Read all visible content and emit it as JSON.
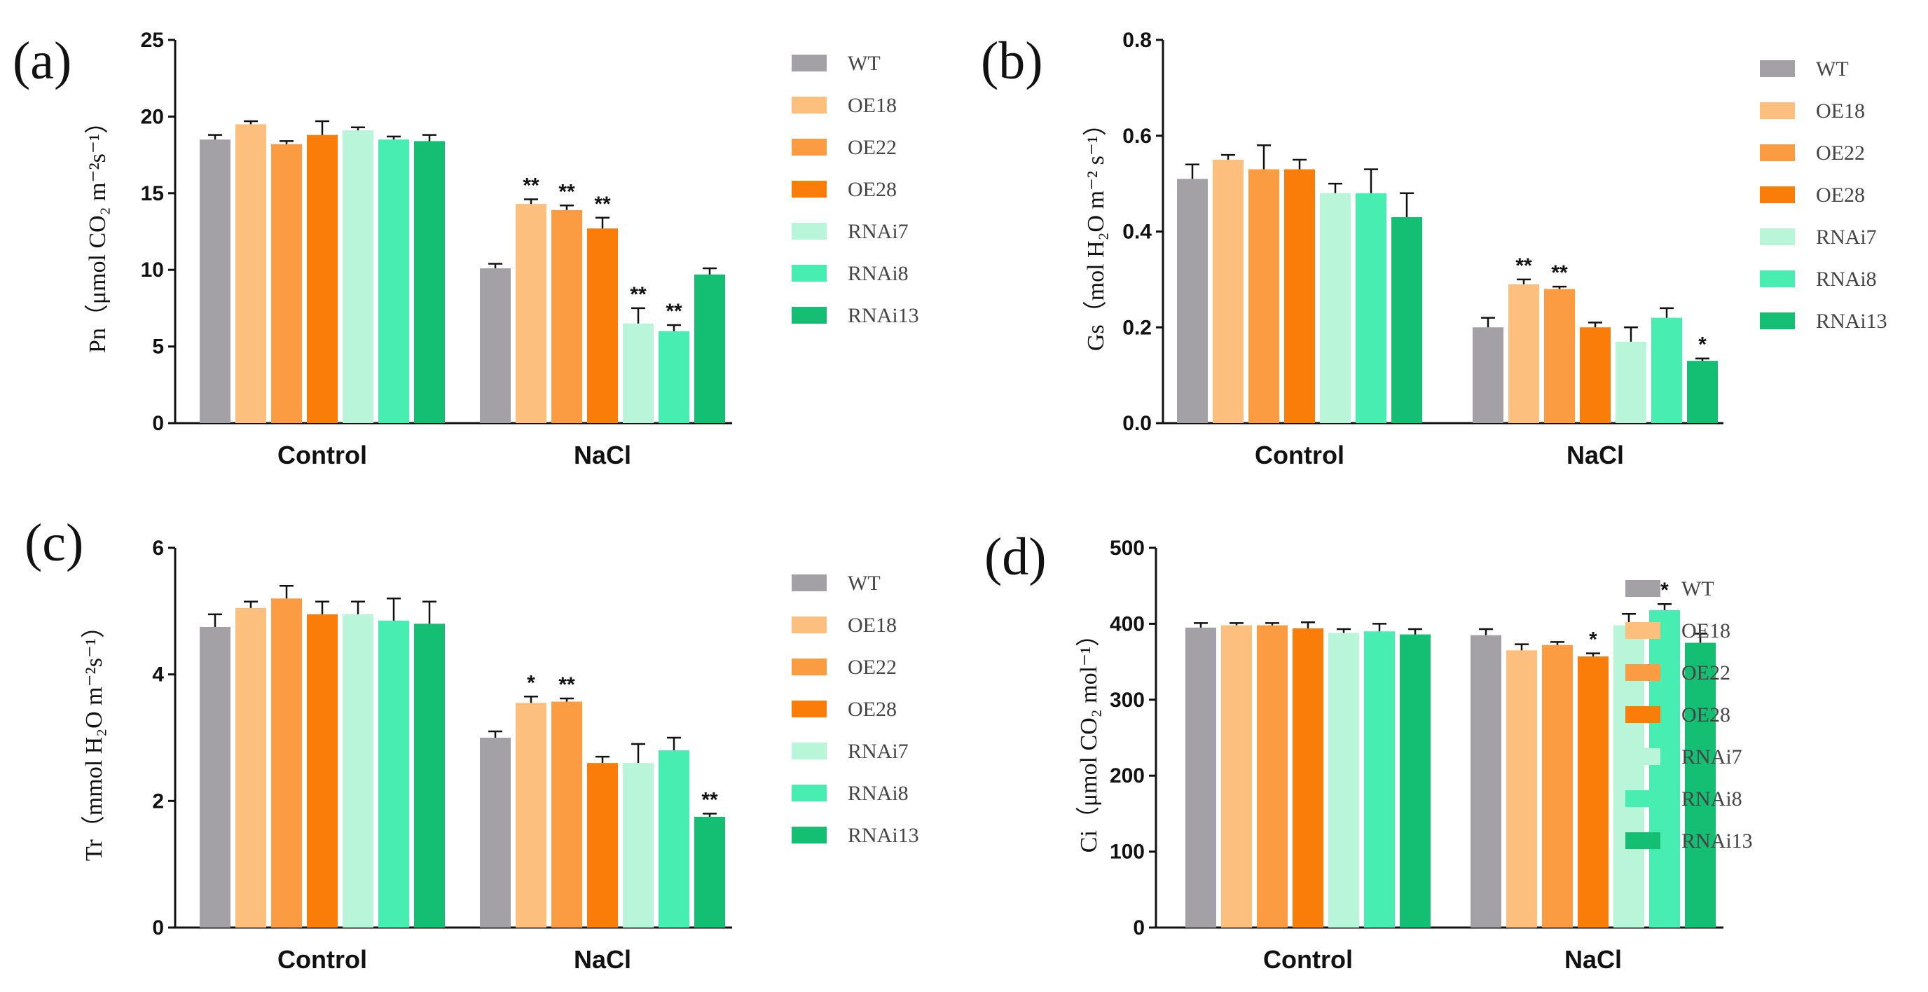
{
  "chart_data": [
    {
      "type": "bar",
      "panel": "(a)",
      "ylabel": "Pn（μmol CO₂ m⁻²s⁻¹）",
      "ylim": [
        0,
        25
      ],
      "yticks": [
        0,
        5,
        10,
        15,
        20,
        25
      ],
      "categories": [
        "Control",
        "NaCl"
      ],
      "series": [
        {
          "name": "WT",
          "values": [
            18.5,
            10.1
          ],
          "errors": [
            0.3,
            0.3
          ],
          "sig": [
            "",
            ""
          ]
        },
        {
          "name": "OE18",
          "values": [
            19.5,
            14.3
          ],
          "errors": [
            0.2,
            0.3
          ],
          "sig": [
            "",
            "**"
          ]
        },
        {
          "name": "OE22",
          "values": [
            18.2,
            13.9
          ],
          "errors": [
            0.2,
            0.3
          ],
          "sig": [
            "",
            "**"
          ]
        },
        {
          "name": "OE28",
          "values": [
            18.8,
            12.7
          ],
          "errors": [
            0.9,
            0.7
          ],
          "sig": [
            "",
            "**"
          ]
        },
        {
          "name": "RNAi7",
          "values": [
            19.1,
            6.5
          ],
          "errors": [
            0.2,
            1.0
          ],
          "sig": [
            "",
            "**"
          ]
        },
        {
          "name": "RNAi8",
          "values": [
            18.5,
            6.0
          ],
          "errors": [
            0.2,
            0.4
          ],
          "sig": [
            "",
            "**"
          ]
        },
        {
          "name": "RNAi13",
          "values": [
            18.4,
            9.7
          ],
          "errors": [
            0.4,
            0.4
          ],
          "sig": [
            "",
            ""
          ]
        }
      ]
    },
    {
      "type": "bar",
      "panel": "(b)",
      "ylabel": "Gs（mol H₂O m⁻² s⁻¹）",
      "ylim": [
        0,
        0.8
      ],
      "yticks": [
        "0.0",
        "0.2",
        "0.4",
        "0.6",
        "0.8"
      ],
      "categories": [
        "Control",
        "NaCl"
      ],
      "series": [
        {
          "name": "WT",
          "values": [
            0.51,
            0.2
          ],
          "errors": [
            0.03,
            0.02
          ],
          "sig": [
            "",
            ""
          ]
        },
        {
          "name": "OE18",
          "values": [
            0.55,
            0.29
          ],
          "errors": [
            0.01,
            0.01
          ],
          "sig": [
            "",
            "**"
          ]
        },
        {
          "name": "OE22",
          "values": [
            0.53,
            0.28
          ],
          "errors": [
            0.05,
            0.005
          ],
          "sig": [
            "",
            "**"
          ]
        },
        {
          "name": "OE28",
          "values": [
            0.53,
            0.2
          ],
          "errors": [
            0.02,
            0.01
          ],
          "sig": [
            "",
            ""
          ]
        },
        {
          "name": "RNAi7",
          "values": [
            0.48,
            0.17
          ],
          "errors": [
            0.02,
            0.03
          ],
          "sig": [
            "",
            ""
          ]
        },
        {
          "name": "RNAi8",
          "values": [
            0.48,
            0.22
          ],
          "errors": [
            0.05,
            0.02
          ],
          "sig": [
            "",
            ""
          ]
        },
        {
          "name": "RNAi13",
          "values": [
            0.43,
            0.13
          ],
          "errors": [
            0.05,
            0.005
          ],
          "sig": [
            "",
            "*"
          ]
        }
      ]
    },
    {
      "type": "bar",
      "panel": "(c)",
      "ylabel": "Tr（mmol H₂O m⁻²s⁻¹）",
      "ylim": [
        0,
        6
      ],
      "yticks": [
        0,
        2,
        4,
        6
      ],
      "categories": [
        "Control",
        "NaCl"
      ],
      "series": [
        {
          "name": "WT",
          "values": [
            4.75,
            3.0
          ],
          "errors": [
            0.2,
            0.1
          ],
          "sig": [
            "",
            ""
          ]
        },
        {
          "name": "OE18",
          "values": [
            5.05,
            3.55
          ],
          "errors": [
            0.1,
            0.1
          ],
          "sig": [
            "",
            "*"
          ]
        },
        {
          "name": "OE22",
          "values": [
            5.2,
            3.57
          ],
          "errors": [
            0.2,
            0.05
          ],
          "sig": [
            "",
            "**"
          ]
        },
        {
          "name": "OE28",
          "values": [
            4.95,
            2.6
          ],
          "errors": [
            0.2,
            0.1
          ],
          "sig": [
            "",
            ""
          ]
        },
        {
          "name": "RNAi7",
          "values": [
            4.95,
            2.6
          ],
          "errors": [
            0.2,
            0.3
          ],
          "sig": [
            "",
            ""
          ]
        },
        {
          "name": "RNAi8",
          "values": [
            4.85,
            2.8
          ],
          "errors": [
            0.35,
            0.2
          ],
          "sig": [
            "",
            ""
          ]
        },
        {
          "name": "RNAi13",
          "values": [
            4.8,
            1.75
          ],
          "errors": [
            0.35,
            0.05
          ],
          "sig": [
            "",
            "**"
          ]
        }
      ]
    },
    {
      "type": "bar",
      "panel": "(d)",
      "ylabel": "Ci（μmol CO₂ mol⁻¹）",
      "ylim": [
        0,
        500
      ],
      "yticks": [
        0,
        100,
        200,
        300,
        400,
        500
      ],
      "categories": [
        "Control",
        "NaCl"
      ],
      "series": [
        {
          "name": "WT",
          "values": [
            395,
            385
          ],
          "errors": [
            6,
            8
          ],
          "sig": [
            "",
            ""
          ]
        },
        {
          "name": "OE18",
          "values": [
            398,
            365
          ],
          "errors": [
            3,
            8
          ],
          "sig": [
            "",
            ""
          ]
        },
        {
          "name": "OE22",
          "values": [
            398,
            372
          ],
          "errors": [
            3,
            4
          ],
          "sig": [
            "",
            ""
          ]
        },
        {
          "name": "OE28",
          "values": [
            394,
            357
          ],
          "errors": [
            8,
            4
          ],
          "sig": [
            "",
            "*"
          ]
        },
        {
          "name": "RNAi7",
          "values": [
            388,
            398
          ],
          "errors": [
            5,
            15
          ],
          "sig": [
            "",
            ""
          ]
        },
        {
          "name": "RNAi8",
          "values": [
            390,
            418
          ],
          "errors": [
            10,
            8
          ],
          "sig": [
            "",
            "*"
          ]
        },
        {
          "name": "RNAi13",
          "values": [
            386,
            375
          ],
          "errors": [
            7,
            12
          ],
          "sig": [
            "",
            ""
          ]
        }
      ]
    }
  ],
  "colors": {
    "WT": "#a3a1a6",
    "OE18": "#fcbf7e",
    "OE22": "#fb9c43",
    "OE28": "#fa7d0a",
    "RNAi7": "#b9f5d9",
    "RNAi8": "#48edb2",
    "RNAi13": "#14be73"
  }
}
